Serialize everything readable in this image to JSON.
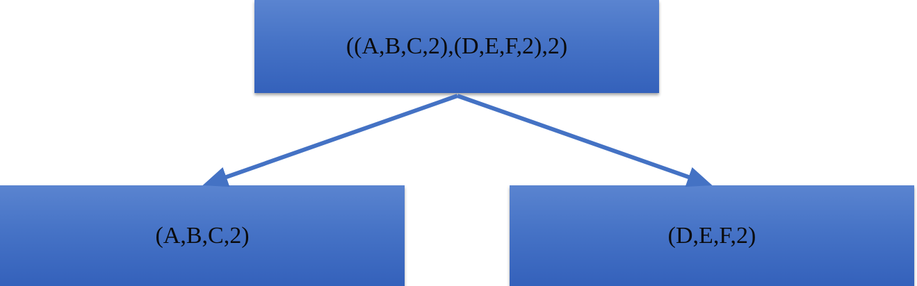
{
  "diagram": {
    "nodes": [
      {
        "id": "root",
        "label": "((A,B,C,2),(D,E,F,2),2)"
      },
      {
        "id": "left",
        "label": "(A,B,C,2)"
      },
      {
        "id": "right",
        "label": "(D,E,F,2)"
      }
    ],
    "edges": [
      {
        "from": "root",
        "to": "left"
      },
      {
        "from": "root",
        "to": "right"
      }
    ],
    "colors": {
      "node_fill_top": "#5a84d0",
      "node_fill_bottom": "#3461bb",
      "edge": "#4472c4",
      "text": "#0b0b0b"
    }
  }
}
